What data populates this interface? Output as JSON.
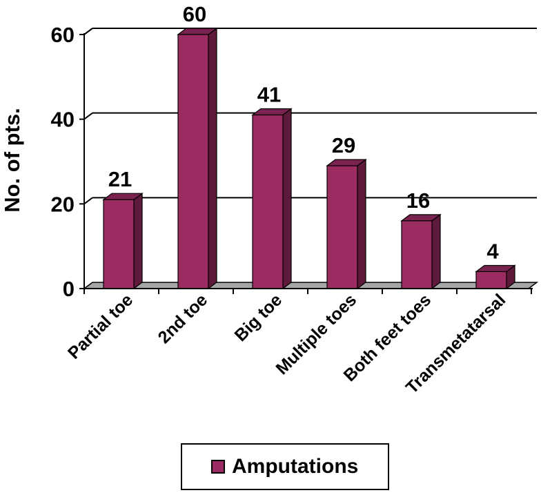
{
  "chart_data": {
    "type": "bar",
    "categories": [
      "Partial toe",
      "2nd toe",
      "Big toe",
      "Multiple toes",
      "Both feet toes",
      "Transmetatarsal"
    ],
    "series": [
      {
        "name": "Amputations",
        "values": [
          21,
          60,
          41,
          29,
          16,
          4
        ]
      }
    ],
    "data_labels": [
      "21",
      "60",
      "41",
      "29",
      "16",
      "4"
    ],
    "y_ticks": [
      "0",
      "20",
      "40",
      "60"
    ],
    "ylabel": "No. of pts.",
    "xlabel": "",
    "ylim": [
      0,
      60
    ],
    "grid": true,
    "style": "3d-bar",
    "colors": {
      "bar_front": "#9B2C62",
      "bar_side": "#5E1A3A",
      "bar_top": "#7A2250",
      "floor": "#A6A6A6"
    },
    "legend": {
      "position": "bottom",
      "label": "Amputations"
    }
  }
}
